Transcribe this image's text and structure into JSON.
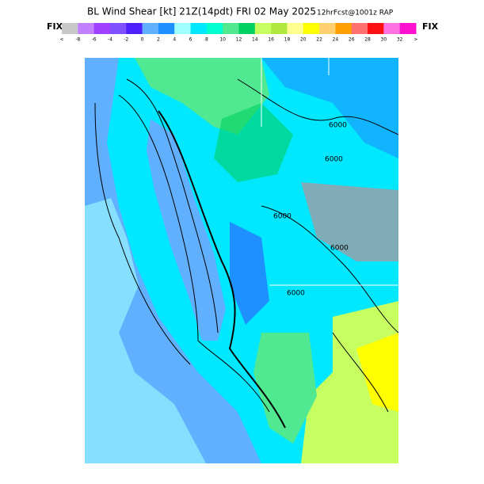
{
  "header": {
    "title": "BL Wind Shear [kt] 21Z(14pdt) FRI 02 May 2025",
    "forecast": "12hrFcst@1001z RAP",
    "fix_left": "FIX",
    "fix_right": "FIX"
  },
  "colorbar": {
    "colors": [
      "#c8c8c8",
      "#c080ff",
      "#a040ff",
      "#8050ff",
      "#5020ff",
      "#60b0ff",
      "#1e90ff",
      "#a0ffff",
      "#00e8ff",
      "#00ffd0",
      "#50e890",
      "#00d060",
      "#c8ff60",
      "#b0e840",
      "#ffff90",
      "#ffff00",
      "#ffd070",
      "#ffa000",
      "#ff7070",
      "#ff1010",
      "#ff70e0",
      "#ff10d0"
    ],
    "labels": [
      "<",
      "-8",
      "-6",
      "-4",
      "-2",
      "0",
      "2",
      "4",
      "6",
      "8",
      "10",
      "12",
      "14",
      "16",
      "18",
      "20",
      "22",
      "24",
      "26",
      "28",
      "30",
      "32",
      ">"
    ]
  },
  "map": {
    "contour_labels": [
      "6000",
      "6000",
      "6000",
      "6000",
      "6000"
    ]
  }
}
